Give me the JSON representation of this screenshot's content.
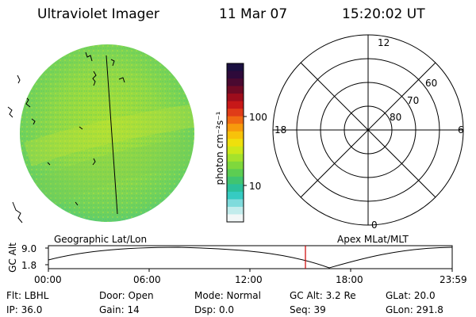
{
  "header": {
    "title": "Ultraviolet Imager",
    "date": "11 Mar 07",
    "time": "15:20:02 UT"
  },
  "colorbar": {
    "unit_label": "photon cm⁻²s⁻¹",
    "ticks": [
      "100",
      "10"
    ],
    "colors": [
      "#1a1040",
      "#2e0a3a",
      "#4a0930",
      "#700a24",
      "#9e0d1c",
      "#c71818",
      "#e03c18",
      "#f06a12",
      "#f79a0c",
      "#f7c20a",
      "#efe00c",
      "#cde81a",
      "#a5e22c",
      "#7fd83c",
      "#5ccd52",
      "#40c470",
      "#2cc09a",
      "#36cbc2",
      "#7fdbdc",
      "#c2ecec",
      "#f2f7f7"
    ]
  },
  "polar_plot": {
    "mlt_labels": [
      "12",
      "18",
      "6",
      "0"
    ],
    "lat_labels": [
      "60",
      "70",
      "80"
    ]
  },
  "timeline": {
    "left_label": "Geographic Lat/Lon",
    "right_label": "Apex MLat/MLT",
    "y_axis_label": "GC Alt",
    "y_ticks": [
      "9.0",
      "1.8"
    ],
    "x_ticks": [
      "00:00",
      "06:00",
      "12:00",
      "18:00",
      "23:59"
    ],
    "current_marker_color": "#cc0000"
  },
  "info": {
    "flt": "Flt: LBHL",
    "door": "Door: Open",
    "mode": "Mode: Normal",
    "gc_alt": "GC Alt: 3.2 Re",
    "glat": "GLat: 20.0",
    "ip": "IP: 36.0",
    "gain": "Gain: 14",
    "dsp": "Dsp:      0.0",
    "seq": "Seq: 39",
    "glon": "GLon: 291.8"
  }
}
